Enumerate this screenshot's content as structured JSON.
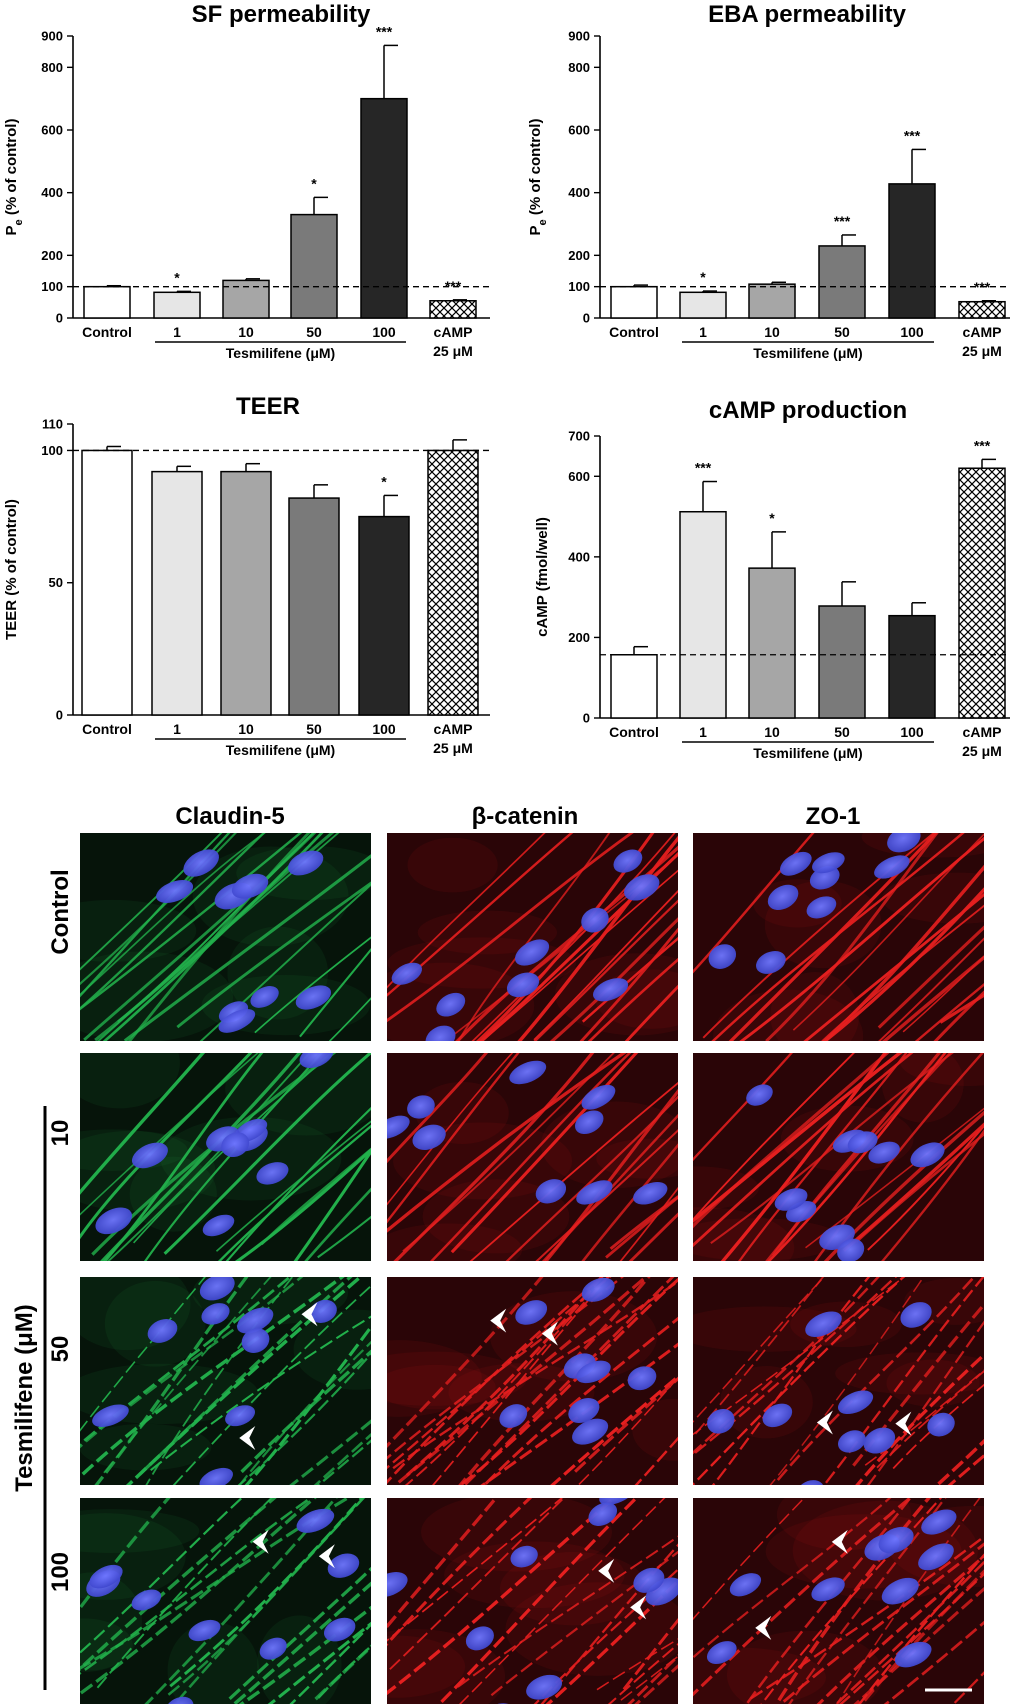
{
  "chart_data": [
    {
      "type": "bar",
      "title": "SF permeability",
      "ylabel": "P",
      "ylabel_sub": "e",
      "ylabel_rest": " (% of control)",
      "categories": [
        "Control",
        "1",
        "10",
        "50",
        "100",
        "cAMP"
      ],
      "category_sub": "25 μM",
      "group_label": "Tesmilifene (μM)",
      "values": [
        100,
        82,
        120,
        330,
        700,
        55
      ],
      "errors": [
        3,
        3,
        5,
        55,
        170,
        3
      ],
      "significance": [
        "",
        "*",
        "",
        "*",
        "***",
        "***"
      ],
      "ylim": [
        0,
        900
      ],
      "yticks": [
        0,
        100,
        200,
        400,
        600,
        800,
        900
      ],
      "reference_line": 100
    },
    {
      "type": "bar",
      "title": "EBA permeability",
      "ylabel": "P",
      "ylabel_sub": "e",
      "ylabel_rest": " (% of control)",
      "categories": [
        "Control",
        "1",
        "10",
        "50",
        "100",
        "cAMP"
      ],
      "category_sub": "25 μM",
      "group_label": "Tesmilifene (μM)",
      "values": [
        100,
        82,
        108,
        230,
        428,
        52
      ],
      "errors": [
        5,
        4,
        6,
        35,
        110,
        3
      ],
      "significance": [
        "",
        "*",
        "",
        "***",
        "***",
        "***"
      ],
      "ylim": [
        0,
        900
      ],
      "yticks": [
        0,
        100,
        200,
        400,
        600,
        800,
        900
      ],
      "reference_line": 100
    },
    {
      "type": "bar",
      "title": "TEER",
      "ylabel": "TEER (% of control)",
      "categories": [
        "Control",
        "1",
        "10",
        "50",
        "100",
        "cAMP"
      ],
      "category_sub": "25 μM",
      "group_label": "Tesmilifene (μM)",
      "values": [
        100,
        92,
        92,
        82,
        75,
        100
      ],
      "errors": [
        1.5,
        2,
        3,
        5,
        8,
        4
      ],
      "significance": [
        "",
        "",
        "",
        "",
        "*",
        ""
      ],
      "ylim": [
        0,
        110
      ],
      "yticks": [
        0,
        50,
        100,
        110
      ],
      "reference_line": 100
    },
    {
      "type": "bar",
      "title": "cAMP production",
      "ylabel": "cAMP (fmol/well)",
      "categories": [
        "Control",
        "1",
        "10",
        "50",
        "100",
        "cAMP"
      ],
      "category_sub": "25 μM",
      "group_label": "Tesmilifene (μM)",
      "values": [
        157,
        512,
        372,
        278,
        254,
        620
      ],
      "errors": [
        20,
        75,
        90,
        60,
        32,
        22
      ],
      "significance": [
        "",
        "***",
        "*",
        "",
        "",
        "***"
      ],
      "ylim": [
        0,
        700
      ],
      "yticks": [
        0,
        200,
        400,
        600,
        700
      ],
      "reference_line": 157
    }
  ],
  "colors": {
    "bars": [
      "#ffffff",
      "#e6e6e6",
      "#a6a6a6",
      "#7a7a7a",
      "#262626",
      "hatched"
    ],
    "claudin": "#22b14c",
    "catenin": "#e61f1f",
    "zo1": "#e61f1f",
    "nuclei": "#4b55e8"
  },
  "micrographs": {
    "columns": [
      "Claudin-5",
      "β-catenin",
      "ZO-1"
    ],
    "rows": [
      "Control",
      "10",
      "50",
      "100"
    ],
    "group_label": "Tesmilifene (μM)"
  }
}
